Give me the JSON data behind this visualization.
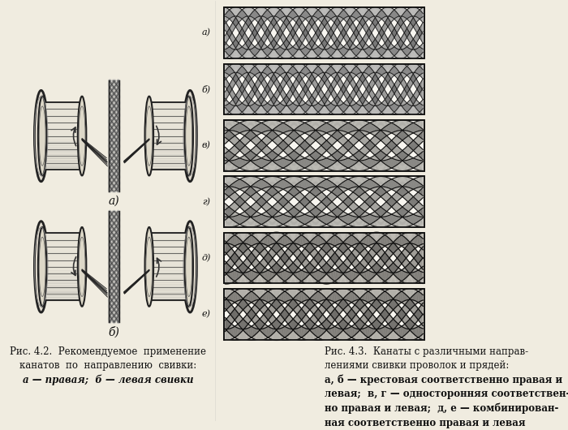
{
  "fig_width": 7.0,
  "fig_height": 5.3,
  "dpi": 100,
  "bg_color": "#f0ece0",
  "caption_left_line1": "Рис. 4.2.  Рекомендуемое  применение",
  "caption_left_line2": "канатов  по  направлению  свивки:",
  "caption_left_line3_normal": "а",
  "caption_left_line3_bold": " — правая;  ",
  "caption_left_line3_bold2": "б",
  "caption_left_line3_rest": " — левая свивки",
  "caption_right_line1": "Рис. 4.3.  Канаты с различными направ-",
  "caption_right_line2": "лениями свивки проволок и прядей:",
  "caption_right_line3": "а, б — крестовая соответственно правая и",
  "caption_right_line4": "левая;  в, г — односторонняя соответствен-",
  "caption_right_line5": "но правая и левая;  д, е — комбинирован-",
  "caption_right_line6": "ная соответственно правая и левая",
  "labels_right": [
    "а)",
    "б)",
    "в)",
    "г)",
    "д)",
    "е)"
  ],
  "label_a": "а)",
  "label_b": "б)"
}
